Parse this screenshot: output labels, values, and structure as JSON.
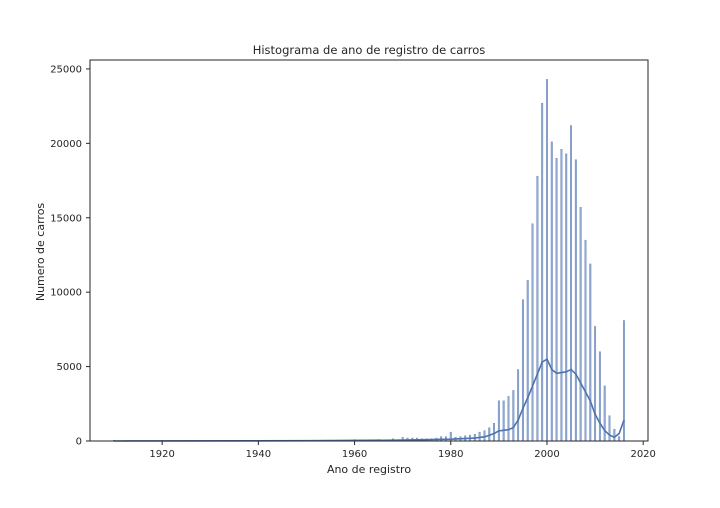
{
  "chart_data": {
    "type": "bar",
    "title": "Histograma de ano de registro de carros",
    "xlabel": "Ano de registro",
    "ylabel": "Numero de carros",
    "xlim": [
      1905,
      2021
    ],
    "ylim": [
      0,
      25600
    ],
    "xticks": [
      1920,
      1940,
      1960,
      1980,
      2000,
      2020
    ],
    "yticks": [
      0,
      5000,
      10000,
      15000,
      20000,
      25000
    ],
    "grid": false,
    "colors": {
      "bars": "#4c72b0",
      "kde": "#4c72b0",
      "axes": "#262626"
    },
    "series": [
      {
        "type": "histogram",
        "x": [
          1910,
          1950,
          1955,
          1960,
          1965,
          1968,
          1970,
          1971,
          1972,
          1973,
          1974,
          1975,
          1976,
          1977,
          1978,
          1979,
          1980,
          1981,
          1982,
          1983,
          1984,
          1985,
          1986,
          1987,
          1988,
          1989,
          1990,
          1991,
          1992,
          1993,
          1994,
          1995,
          1996,
          1997,
          1998,
          1999,
          2000,
          2001,
          2002,
          2003,
          2004,
          2005,
          2006,
          2007,
          2008,
          2009,
          2010,
          2011,
          2012,
          2013,
          2014,
          2015,
          2016
        ],
        "values": [
          50,
          30,
          40,
          100,
          100,
          150,
          250,
          200,
          200,
          200,
          150,
          150,
          150,
          200,
          300,
          300,
          600,
          250,
          300,
          350,
          400,
          450,
          600,
          700,
          900,
          1200,
          2700,
          2700,
          3000,
          3400,
          4800,
          9500,
          10800,
          14600,
          17800,
          22700,
          24300,
          20100,
          19000,
          19600,
          19300,
          21200,
          18900,
          15700,
          13500,
          11900,
          7700,
          6000,
          3700,
          1700,
          800,
          300,
          8100
        ]
      },
      {
        "type": "kde",
        "x": [
          1910,
          1950,
          1970,
          1980,
          1985,
          1987,
          1988,
          1989,
          1990,
          1991,
          1992,
          1993,
          1994,
          1995,
          1996,
          1997,
          1998,
          1999,
          2000,
          2001,
          2002,
          2003,
          2004,
          2005,
          2006,
          2007,
          2008,
          2009,
          2010,
          2011,
          2012,
          2013,
          2014,
          2015,
          2016
        ],
        "values": [
          0,
          20,
          60,
          120,
          200,
          280,
          380,
          500,
          680,
          720,
          760,
          900,
          1400,
          2200,
          2900,
          3700,
          4500,
          5300,
          5500,
          4800,
          4550,
          4600,
          4650,
          4800,
          4500,
          3900,
          3300,
          2700,
          1800,
          1200,
          700,
          400,
          250,
          500,
          1400
        ]
      }
    ]
  }
}
